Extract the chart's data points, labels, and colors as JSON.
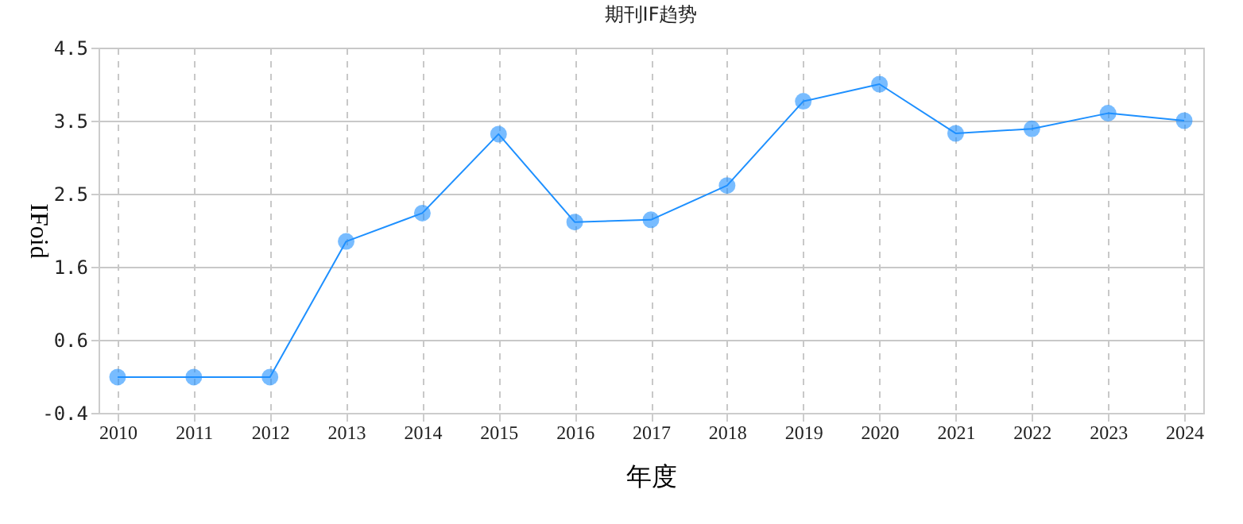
{
  "chart_data": {
    "type": "line",
    "title": "期刊IF趋势",
    "xlabel": "年度",
    "ylabel": "IFoid",
    "categories": [
      "2010",
      "2011",
      "2012",
      "2013",
      "2014",
      "2015",
      "2016",
      "2017",
      "2018",
      "2019",
      "2020",
      "2021",
      "2022",
      "2023",
      "2024"
    ],
    "series": [
      {
        "color": "#1e90ff",
        "values": [
          0.08,
          0.08,
          0.08,
          1.9,
          2.28,
          3.34,
          2.16,
          2.19,
          2.65,
          3.78,
          4.01,
          3.35,
          3.41,
          3.62,
          3.52
        ]
      }
    ],
    "ylim": [
      -0.4,
      4.5
    ],
    "yticks": [
      {
        "value": -0.4,
        "label": "-0.4"
      },
      {
        "value": 0.58,
        "label": "0.6"
      },
      {
        "value": 1.56,
        "label": "1.6"
      },
      {
        "value": 2.54,
        "label": "2.5"
      },
      {
        "value": 3.52,
        "label": "3.5"
      },
      {
        "value": 4.5,
        "label": "4.5"
      }
    ],
    "grid": true,
    "marker": "circle",
    "line_style": "solid"
  }
}
